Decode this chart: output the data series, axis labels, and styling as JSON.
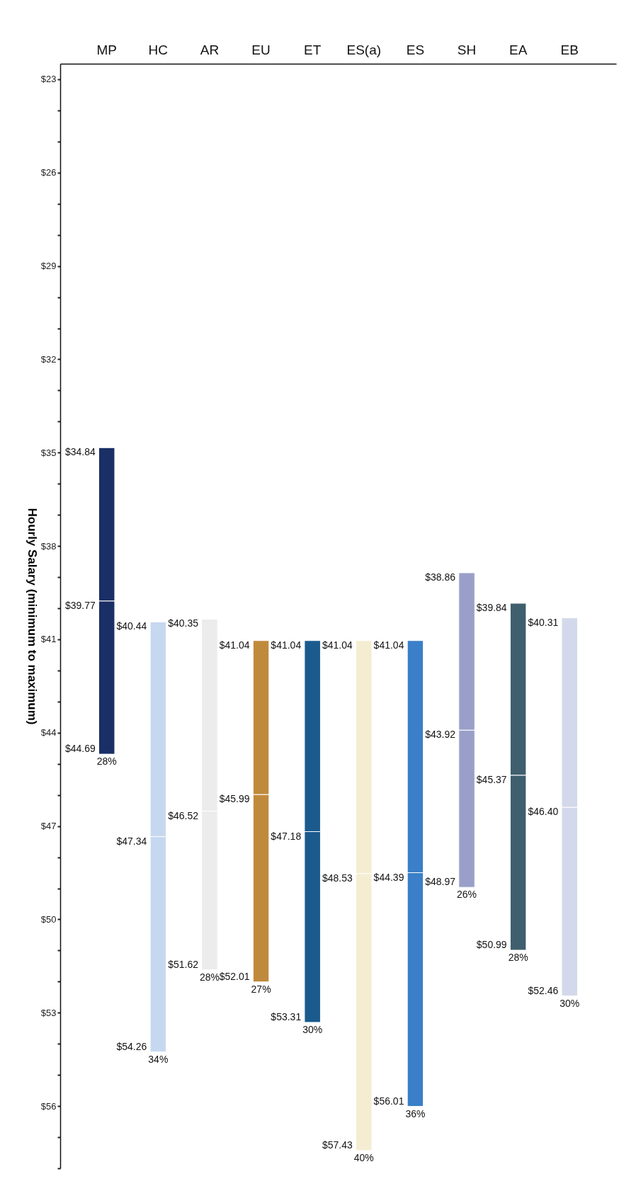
{
  "chart_data": {
    "type": "bar",
    "ylabel": "Hourly Salary (minimum to maximum)",
    "categories": [
      "MP",
      "HC",
      "AR",
      "EU",
      "ET",
      "ES(a)",
      "ES",
      "SH",
      "EA",
      "EB"
    ],
    "series": [
      {
        "colors": [
          "#1a2f66",
          "#c6d8ef",
          "#ececec",
          "#c08a3c",
          "#1a5a8c",
          "#f4edd2",
          "#3a7fc8",
          "#9a9fc9",
          "#3f5f6e",
          "#d3d9ea"
        ],
        "base": [
          34.84,
          40.44,
          40.35,
          41.04,
          41.04,
          41.04,
          41.04,
          38.86,
          39.84,
          40.31
        ],
        "values": [
          4.93,
          6.9,
          6.17,
          4.95,
          6.14,
          7.49,
          7.46,
          5.06,
          5.53,
          6.09
        ]
      },
      {
        "colors": [
          "#1a2f66",
          "#c6d8ef",
          "#ececec",
          "#c08a3c",
          "#1a5a8c",
          "#f4edd2",
          "#3a7fc8",
          "#9a9fc9",
          "#3f5f6e",
          "#d3d9ea"
        ],
        "base": [
          39.77,
          47.34,
          46.52,
          45.99,
          47.18,
          48.53,
          48.5,
          43.92,
          45.37,
          46.4
        ],
        "values": [
          4.92,
          6.92,
          5.1,
          6.02,
          6.13,
          8.9,
          7.51,
          5.05,
          5.62,
          6.06
        ]
      }
    ],
    "ylim": [
      58,
      22.5
    ],
    "yticks": [
      {
        "value": 23,
        "label": "$23"
      },
      {
        "value": 24,
        "label": null
      },
      {
        "value": 25,
        "label": null
      },
      {
        "value": 26,
        "label": "$26"
      },
      {
        "value": 27,
        "label": null
      },
      {
        "value": 28,
        "label": null
      },
      {
        "value": 29,
        "label": "$29"
      },
      {
        "value": 30,
        "label": null
      },
      {
        "value": 31,
        "label": null
      },
      {
        "value": 32,
        "label": "$32"
      },
      {
        "value": 33,
        "label": null
      },
      {
        "value": 34,
        "label": null
      },
      {
        "value": 35,
        "label": "$35"
      },
      {
        "value": 36,
        "label": null
      },
      {
        "value": 37,
        "label": null
      },
      {
        "value": 38,
        "label": "$38"
      },
      {
        "value": 39,
        "label": null
      },
      {
        "value": 40,
        "label": null
      },
      {
        "value": 41,
        "label": "$41"
      },
      {
        "value": 42,
        "label": null
      },
      {
        "value": 43,
        "label": null
      },
      {
        "value": 44,
        "label": "$44"
      },
      {
        "value": 45,
        "label": null
      },
      {
        "value": 46,
        "label": null
      },
      {
        "value": 47,
        "label": "$47"
      },
      {
        "value": 48,
        "label": null
      },
      {
        "value": 49,
        "label": null
      },
      {
        "value": 50,
        "label": "$50"
      },
      {
        "value": 51,
        "label": null
      },
      {
        "value": 52,
        "label": null
      },
      {
        "value": 53,
        "label": "$53"
      },
      {
        "value": 54,
        "label": null
      },
      {
        "value": 55,
        "label": null
      },
      {
        "value": 56,
        "label": "$56"
      },
      {
        "value": 57,
        "label": null
      },
      {
        "value": 58,
        "label": null
      }
    ],
    "annotations": [
      {
        "text": "$34.84",
        "x": "MP",
        "y": 34.84
      },
      {
        "text": "$39.77",
        "x": "MP",
        "y": 39.77
      },
      {
        "text": "$44.69",
        "x": "MP",
        "y": 44.69
      },
      {
        "text": "28%",
        "x": "MP",
        "y": 44.69
      },
      {
        "text": "$40.44",
        "x": "HC",
        "y": 40.44
      },
      {
        "text": "$47.34",
        "x": "HC",
        "y": 47.34
      },
      {
        "text": "$54.26",
        "x": "HC",
        "y": 54.26
      },
      {
        "text": "34%",
        "x": "HC",
        "y": 54.26
      },
      {
        "text": "$40.35",
        "x": "AR",
        "y": 40.35
      },
      {
        "text": "$46.52",
        "x": "AR",
        "y": 46.52
      },
      {
        "text": "$51.62",
        "x": "AR",
        "y": 51.62
      },
      {
        "text": "28%",
        "x": "AR",
        "y": 51.62
      },
      {
        "text": "$41.04",
        "x": "EU",
        "y": 41.04
      },
      {
        "text": "$45.99",
        "x": "EU",
        "y": 45.99
      },
      {
        "text": "$52.01",
        "x": "EU",
        "y": 52.01
      },
      {
        "text": "27%",
        "x": "EU",
        "y": 52.01
      },
      {
        "text": "$41.04",
        "x": "ET",
        "y": 41.04
      },
      {
        "text": "$47.18",
        "x": "ET",
        "y": 47.18
      },
      {
        "text": "$53.31",
        "x": "ET",
        "y": 53.31
      },
      {
        "text": "30%",
        "x": "ET",
        "y": 53.31
      },
      {
        "text": "$41.04",
        "x": "ES(a)",
        "y": 41.04
      },
      {
        "text": "$48.53",
        "x": "ES(a)",
        "y": 48.53
      },
      {
        "text": "$57.43",
        "x": "ES(a)",
        "y": 57.43
      },
      {
        "text": "40%",
        "x": "ES(a)",
        "y": 57.43
      },
      {
        "text": "$41.04",
        "x": "ES",
        "y": 41.04
      },
      {
        "text": "$44.39",
        "x": "ES",
        "y": 48.5
      },
      {
        "text": "$56.01",
        "x": "ES",
        "y": 56.01
      },
      {
        "text": "36%",
        "x": "ES",
        "y": 56.01
      },
      {
        "text": "$38.86",
        "x": "SH",
        "y": 38.86
      },
      {
        "text": "$43.92",
        "x": "SH",
        "y": 43.92
      },
      {
        "text": "$48.97",
        "x": "SH",
        "y": 48.97
      },
      {
        "text": "26%",
        "x": "SH",
        "y": 48.97
      },
      {
        "text": "$39.84",
        "x": "EA",
        "y": 39.84
      },
      {
        "text": "$45.37",
        "x": "EA",
        "y": 45.37
      },
      {
        "text": "$50.99",
        "x": "EA",
        "y": 50.99
      },
      {
        "text": "28%",
        "x": "EA",
        "y": 50.99
      },
      {
        "text": "$40.31",
        "x": "EB",
        "y": 40.31
      },
      {
        "text": "$46.40",
        "x": "EB",
        "y": 46.4
      },
      {
        "text": "$52.46",
        "x": "EB",
        "y": 52.46
      },
      {
        "text": "30%",
        "x": "EB",
        "y": 52.46
      }
    ]
  }
}
